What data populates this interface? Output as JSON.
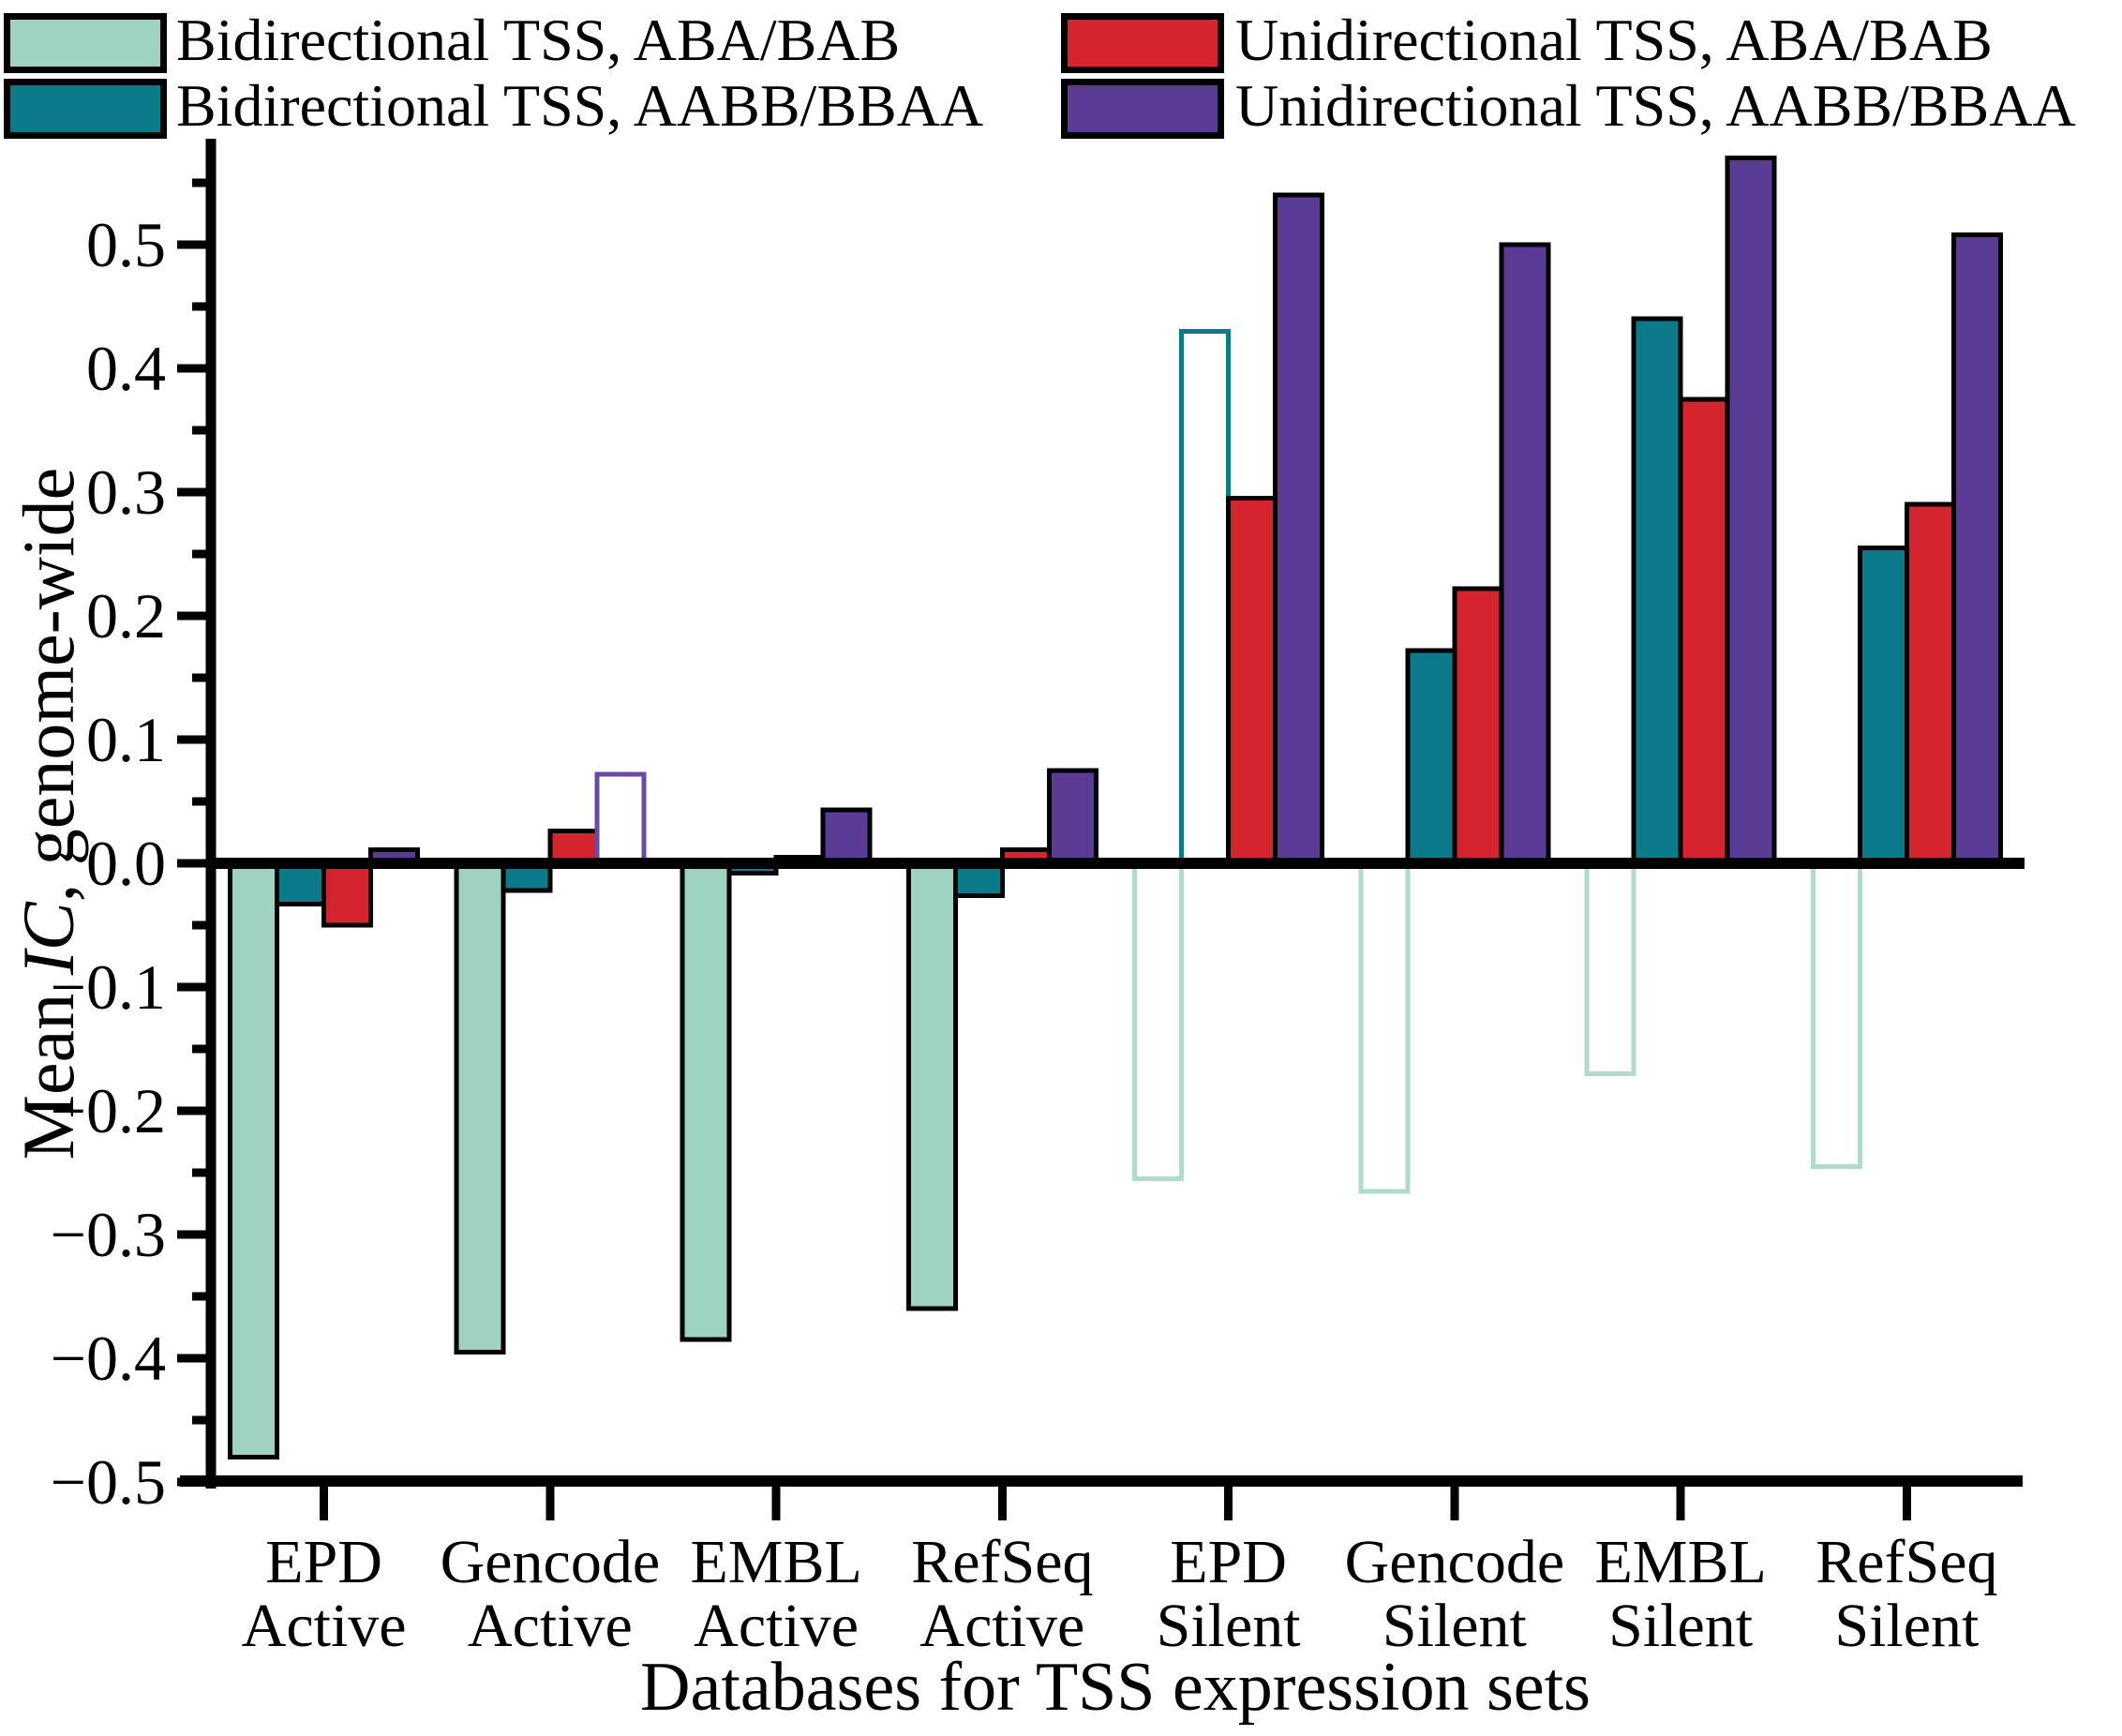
{
  "legend": {
    "items": [
      {
        "label": "Bidirectional TSS, ABA/BAB",
        "color": "#9ed3c2",
        "col": 0,
        "row": 0
      },
      {
        "label": "Bidirectional TSS, AABB/BBAA",
        "color": "#0b7b8c",
        "col": 0,
        "row": 1
      },
      {
        "label": "Unidirectional TSS, ABA/BAB",
        "color": "#d6242f",
        "col": 1,
        "row": 0
      },
      {
        "label": "Unidirectional TSS, AABB/BBAA",
        "color": "#5a3c96",
        "col": 1,
        "row": 1
      }
    ]
  },
  "axes": {
    "y_title_prefix": "Mean ",
    "y_title_italic": "IC",
    "y_title_suffix": ", genome-wide",
    "x_title": "Databases for TSS expression sets"
  },
  "chart_data": {
    "type": "bar",
    "title": "",
    "xlabel": "Databases for TSS expression sets",
    "ylabel": "Mean IC, genome-wide",
    "ylim": [
      -0.5,
      0.585
    ],
    "grid": false,
    "legend_position": "top",
    "categories": [
      [
        "EPD",
        "Active"
      ],
      [
        "Gencode",
        "Active"
      ],
      [
        "EMBL",
        "Active"
      ],
      [
        "RefSeq",
        "Active"
      ],
      [
        "EPD",
        "Silent"
      ],
      [
        "Gencode",
        "Silent"
      ],
      [
        "EMBL",
        "Silent"
      ],
      [
        "RefSeq",
        "Silent"
      ]
    ],
    "y_major_ticks": [
      {
        "v": 0.5,
        "label": "0.5"
      },
      {
        "v": 0.4,
        "label": "0.4"
      },
      {
        "v": 0.3,
        "label": "0.3"
      },
      {
        "v": 0.2,
        "label": "0.2"
      },
      {
        "v": 0.1,
        "label": "0.1"
      },
      {
        "v": 0.0,
        "label": "0.0"
      },
      {
        "v": -0.1,
        "label": "−0.1"
      },
      {
        "v": -0.2,
        "label": "−0.2"
      },
      {
        "v": -0.3,
        "label": "−0.3"
      },
      {
        "v": -0.4,
        "label": "−0.4"
      },
      {
        "v": -0.5,
        "label": "−0.5"
      }
    ],
    "y_minor_ticks": [
      0.55,
      0.45,
      0.35,
      0.25,
      0.15,
      0.05,
      -0.05,
      -0.15,
      -0.25,
      -0.35,
      -0.45
    ],
    "series": [
      {
        "name": "Bidirectional TSS, ABA/BAB",
        "color": "#9ed3c2",
        "hollow_stroke": "#aedbcb",
        "values": [
          -0.48,
          -0.395,
          -0.385,
          -0.36,
          -0.255,
          -0.265,
          -0.17,
          -0.245
        ],
        "hollow": [
          false,
          false,
          false,
          false,
          true,
          true,
          true,
          true
        ]
      },
      {
        "name": "Bidirectional TSS, AABB/BBAA",
        "color": "#0b7b8c",
        "hollow_stroke": "#0b7b8c",
        "values": [
          -0.033,
          -0.022,
          -0.008,
          -0.026,
          0.43,
          0.172,
          0.44,
          0.255
        ],
        "hollow": [
          false,
          false,
          false,
          false,
          true,
          false,
          false,
          false
        ]
      },
      {
        "name": "Unidirectional TSS, ABA/BAB",
        "color": "#d6242f",
        "hollow_stroke": "#d6242f",
        "values": [
          -0.05,
          0.026,
          0.005,
          0.011,
          0.295,
          0.222,
          0.375,
          0.29
        ],
        "hollow": [
          false,
          false,
          false,
          false,
          false,
          false,
          false,
          false
        ]
      },
      {
        "name": "Unidirectional TSS, AABB/BBAA",
        "color": "#5a3c96",
        "hollow_stroke": "#6a4aa4",
        "values": [
          0.011,
          0.072,
          0.043,
          0.075,
          0.54,
          0.5,
          0.57,
          0.508
        ],
        "hollow": [
          false,
          true,
          false,
          false,
          false,
          false,
          false,
          false
        ]
      }
    ]
  }
}
